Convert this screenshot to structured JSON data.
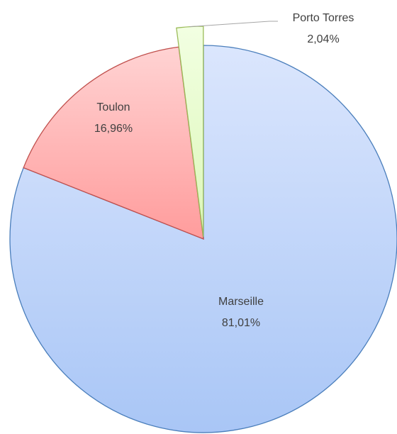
{
  "chart_data": {
    "type": "pie",
    "categories": [
      "Marseille",
      "Toulon",
      "Porto Torres"
    ],
    "values": [
      81.01,
      16.96,
      2.04
    ],
    "value_labels": [
      "81,01%",
      "16,96%",
      "2,04%"
    ],
    "colors": [
      "#c9dbfb",
      "#ffb8b8",
      "#e8fccc"
    ]
  }
}
